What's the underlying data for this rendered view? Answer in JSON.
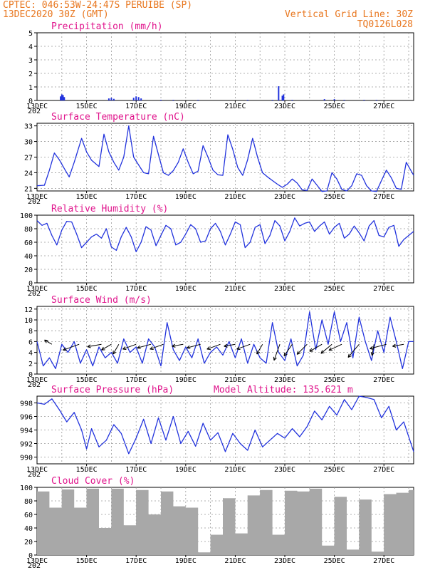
{
  "header": {
    "station": "CPTEC:  046:53W-24:47S  PERUIBE (SP)",
    "run": "13DEC2020 30Z (GMT)",
    "grid_note": "Vertical Grid Line: 30Z",
    "code": "TQ0126L028"
  },
  "x_axis": {
    "start_label": "13DEC",
    "labels": [
      "15DEC",
      "17DEC",
      "19DEC",
      "21DEC",
      "23DEC",
      "25DEC",
      "27DEC"
    ],
    "year_fragment": "202",
    "days": 15.2
  },
  "colors": {
    "header": "#e8761e",
    "title": "#e0148c",
    "line": "#2233dd",
    "bar": "#2233dd",
    "cloud": "#a8a8a8",
    "arrow": "#000000"
  },
  "chart_data": [
    {
      "type": "bar",
      "title": "Precipitation (mm/h)",
      "ylim": [
        0,
        5
      ],
      "yticks": [
        0,
        1,
        2,
        3,
        4,
        5
      ],
      "grid": true,
      "x": [
        0.95,
        1.0,
        1.05,
        1.1,
        2.9,
        3.0,
        3.1,
        3.9,
        4.0,
        4.1,
        4.2,
        5.0,
        5.5,
        6.5,
        8.5,
        9.5,
        10.3,
        11.6,
        12.0,
        12.4,
        13.2,
        13.7
      ],
      "values": [
        0.3,
        0.45,
        0.4,
        0.25,
        0.15,
        0.2,
        0.12,
        0.2,
        0.3,
        0.25,
        0.15,
        0.05,
        0.05,
        0.05,
        0.05,
        0.05,
        0.05,
        0.1,
        0.1,
        0.05,
        0.05,
        0.05
      ]
    },
    {
      "type": "bar",
      "title": "",
      "ylim": [
        0,
        5
      ],
      "x": [
        9.75,
        9.9,
        9.95
      ],
      "values": [
        1.05,
        0.35,
        0.45
      ]
    },
    {
      "type": "line",
      "title": "Surface Temperature (nC)",
      "ylim": [
        20.5,
        33.5
      ],
      "yticks": [
        21,
        24,
        27,
        30,
        33
      ],
      "grid": true,
      "x": [
        0,
        0.3,
        0.5,
        0.7,
        0.9,
        1.1,
        1.3,
        1.5,
        1.8,
        2.0,
        2.2,
        2.5,
        2.7,
        2.9,
        3.1,
        3.3,
        3.5,
        3.7,
        3.9,
        4.1,
        4.3,
        4.5,
        4.7,
        4.9,
        5.1,
        5.3,
        5.5,
        5.7,
        5.9,
        6.1,
        6.3,
        6.5,
        6.7,
        6.9,
        7.1,
        7.3,
        7.5,
        7.7,
        7.9,
        8.1,
        8.3,
        8.5,
        8.7,
        8.9,
        9.1,
        9.3,
        9.5,
        9.7,
        9.9,
        10.1,
        10.3,
        10.5,
        10.7,
        10.9,
        11.1,
        11.3,
        11.5,
        11.7,
        11.9,
        12.1,
        12.3,
        12.5,
        12.7,
        12.9,
        13.1,
        13.3,
        13.5,
        13.7,
        13.9,
        14.1,
        14.3,
        14.5,
        14.7,
        14.9,
        15.2
      ],
      "values": [
        21.5,
        21.6,
        24.5,
        27.8,
        26.5,
        24.8,
        23.2,
        26.0,
        30.6,
        28.0,
        26.4,
        25.2,
        31.4,
        28.0,
        26.0,
        24.5,
        27.0,
        33.0,
        27.0,
        25.5,
        24.0,
        23.8,
        31.0,
        27.5,
        24.0,
        23.5,
        24.4,
        26.0,
        28.6,
        26.0,
        23.8,
        24.3,
        29.2,
        27.0,
        24.5,
        23.6,
        23.5,
        31.3,
        28.5,
        25.0,
        23.5,
        26.5,
        30.6,
        27.0,
        24.0,
        23.2,
        22.5,
        21.8,
        21.2,
        21.8,
        22.8,
        22.0,
        20.7,
        20.6,
        22.8,
        21.6,
        20.4,
        20.5,
        24.0,
        22.8,
        20.8,
        20.5,
        21.5,
        23.8,
        23.5,
        21.5,
        20.5,
        20.4,
        22.5,
        24.5,
        23.0,
        21.0,
        20.8,
        26.0,
        23.5
      ]
    },
    {
      "type": "line",
      "title": "Relative Humidity (%)",
      "ylim": [
        0,
        100
      ],
      "yticks": [
        0,
        20,
        40,
        60,
        80,
        100
      ],
      "grid": true,
      "x": [
        0,
        0.2,
        0.4,
        0.6,
        0.8,
        1.0,
        1.2,
        1.4,
        1.6,
        1.8,
        2.0,
        2.2,
        2.4,
        2.6,
        2.8,
        3.0,
        3.2,
        3.4,
        3.6,
        3.8,
        4.0,
        4.2,
        4.4,
        4.6,
        4.8,
        5.0,
        5.2,
        5.4,
        5.6,
        5.8,
        6.0,
        6.2,
        6.4,
        6.6,
        6.8,
        7.0,
        7.2,
        7.4,
        7.6,
        7.8,
        8.0,
        8.2,
        8.4,
        8.6,
        8.8,
        9.0,
        9.2,
        9.4,
        9.6,
        9.8,
        10.0,
        10.2,
        10.4,
        10.6,
        10.8,
        11.0,
        11.2,
        11.4,
        11.6,
        11.8,
        12.0,
        12.2,
        12.4,
        12.6,
        12.8,
        13.0,
        13.2,
        13.4,
        13.6,
        13.8,
        14.0,
        14.2,
        14.4,
        14.6,
        14.8,
        15.2
      ],
      "values": [
        92,
        85,
        88,
        70,
        56,
        78,
        91,
        90,
        72,
        52,
        60,
        68,
        72,
        66,
        80,
        53,
        48,
        68,
        82,
        68,
        46,
        60,
        83,
        78,
        55,
        70,
        85,
        80,
        56,
        60,
        72,
        86,
        80,
        60,
        62,
        80,
        88,
        76,
        56,
        72,
        90,
        86,
        52,
        60,
        82,
        86,
        58,
        70,
        92,
        84,
        62,
        76,
        96,
        84,
        88,
        90,
        76,
        84,
        90,
        72,
        82,
        88,
        66,
        72,
        84,
        74,
        62,
        84,
        92,
        70,
        68,
        82,
        85,
        54,
        64,
        76
      ]
    },
    {
      "type": "line",
      "title": "Surface Wind (m/s)",
      "ylim": [
        0,
        12.5
      ],
      "yticks": [
        0,
        2,
        4,
        6,
        8,
        10,
        12
      ],
      "grid": true,
      "x": [
        0,
        0.25,
        0.5,
        0.75,
        1.0,
        1.25,
        1.5,
        1.75,
        2.0,
        2.25,
        2.5,
        2.75,
        3.0,
        3.25,
        3.5,
        3.75,
        4.0,
        4.25,
        4.5,
        4.75,
        5.0,
        5.25,
        5.5,
        5.75,
        6.0,
        6.25,
        6.5,
        6.75,
        7.0,
        7.25,
        7.5,
        7.75,
        8.0,
        8.25,
        8.5,
        8.75,
        9.0,
        9.25,
        9.5,
        9.75,
        10.0,
        10.25,
        10.5,
        10.75,
        11.0,
        11.25,
        11.5,
        11.75,
        12.0,
        12.25,
        12.5,
        12.75,
        13.0,
        13.25,
        13.5,
        13.75,
        14.0,
        14.25,
        14.5,
        14.75,
        15.0,
        15.2
      ],
      "values": [
        6.0,
        1.5,
        3.0,
        1.0,
        5.5,
        4.0,
        6.0,
        2.0,
        4.5,
        1.5,
        5.0,
        3.0,
        4.0,
        2.0,
        6.5,
        4.0,
        5.0,
        2.0,
        6.5,
        5.0,
        1.5,
        9.5,
        4.5,
        2.5,
        5.0,
        3.0,
        6.5,
        2.0,
        4.0,
        5.0,
        3.5,
        6.0,
        3.0,
        6.5,
        2.0,
        5.5,
        3.0,
        2.0,
        9.5,
        4.0,
        2.5,
        6.5,
        1.5,
        3.5,
        11.5,
        4.5,
        10.0,
        5.5,
        11.5,
        6.0,
        9.5,
        3.0,
        10.5,
        6.0,
        2.5,
        8.0,
        4.0,
        10.5,
        6.0,
        1.0,
        6.0,
        6.0
      ],
      "vectors_x": [
        0.6,
        1.7,
        2.6,
        3.0,
        3.3,
        4.0,
        4.6,
        5.1,
        5.9,
        6.6,
        7.4,
        8.0,
        8.6,
        9.1,
        9.8,
        10.3,
        10.9,
        11.5,
        11.9,
        12.3,
        13.0,
        13.6,
        14.1,
        14.8
      ],
      "vectors_angle_deg": [
        150,
        200,
        190,
        210,
        240,
        200,
        195,
        200,
        190,
        195,
        200,
        190,
        200,
        240,
        250,
        235,
        225,
        210,
        220,
        205,
        230,
        260,
        195,
        190
      ],
      "vectors_speed": [
        3,
        6,
        5,
        4,
        4,
        5,
        5,
        5,
        4,
        5,
        5,
        4,
        5,
        4,
        6,
        5,
        5,
        5,
        5,
        5,
        6,
        4,
        6,
        4
      ]
    },
    {
      "type": "line",
      "title": "Surface Pressure (hPa)",
      "annotation": "Model Altitude: 135.621  m",
      "ylim": [
        989,
        999
      ],
      "yticks": [
        990,
        992,
        994,
        996,
        998
      ],
      "grid": true,
      "x": [
        0,
        0.3,
        0.6,
        0.9,
        1.2,
        1.5,
        1.8,
        2.0,
        2.2,
        2.5,
        2.8,
        3.1,
        3.4,
        3.7,
        4.0,
        4.3,
        4.6,
        4.9,
        5.2,
        5.5,
        5.8,
        6.1,
        6.4,
        6.7,
        7.0,
        7.3,
        7.6,
        7.9,
        8.2,
        8.5,
        8.8,
        9.1,
        9.4,
        9.7,
        10.0,
        10.3,
        10.6,
        10.9,
        11.2,
        11.5,
        11.8,
        12.1,
        12.4,
        12.7,
        13.0,
        13.3,
        13.6,
        13.9,
        14.2,
        14.5,
        14.8,
        15.2
      ],
      "values": [
        998.0,
        997.8,
        998.6,
        997.0,
        995.2,
        996.6,
        994.0,
        991.2,
        994.2,
        991.5,
        992.5,
        994.8,
        993.5,
        990.5,
        992.8,
        995.6,
        992.0,
        995.8,
        992.5,
        996.0,
        992.0,
        993.8,
        991.6,
        995.0,
        992.5,
        993.6,
        990.8,
        993.5,
        992.0,
        991.0,
        994.0,
        991.5,
        992.5,
        993.5,
        992.8,
        994.2,
        993.0,
        994.5,
        996.8,
        995.5,
        997.5,
        996.2,
        998.5,
        997.0,
        999.0,
        998.8,
        998.5,
        995.8,
        997.5,
        994.0,
        995.2,
        990.8
      ]
    },
    {
      "type": "bar",
      "title": "Cloud Cover (%)",
      "ylim": [
        0,
        100
      ],
      "yticks": [
        0,
        20,
        40,
        60,
        80,
        100
      ],
      "grid": true,
      "x": [
        0,
        0.5,
        1.0,
        1.5,
        2.0,
        2.5,
        3.0,
        3.5,
        4.0,
        4.5,
        5.0,
        5.5,
        6.0,
        6.5,
        7.0,
        7.5,
        8.0,
        8.5,
        9.0,
        9.5,
        10.0,
        10.5,
        11.0,
        11.5,
        12.0,
        12.5,
        13.0,
        13.5,
        14.0,
        14.5,
        15.0
      ],
      "values": [
        94,
        70,
        97,
        70,
        98,
        40,
        98,
        44,
        96,
        60,
        94,
        72,
        70,
        4,
        30,
        84,
        32,
        88,
        96,
        30,
        95,
        94,
        98,
        14,
        86,
        8,
        82,
        5,
        90,
        92,
        96
      ]
    }
  ]
}
